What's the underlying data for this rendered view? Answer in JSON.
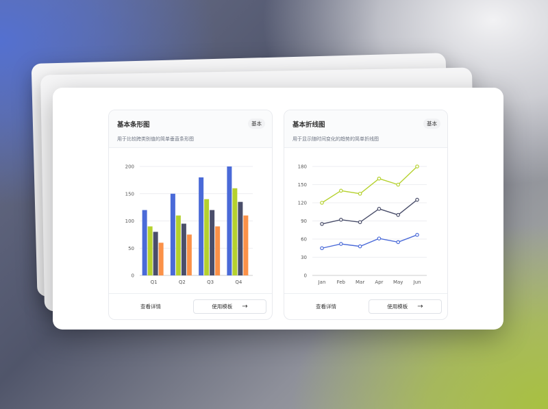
{
  "cards": [
    {
      "title": "基本条形图",
      "badge": "基本",
      "description": "用于比较跨类别值的简单垂直条形图",
      "detail_label": "查看详情",
      "use_label": "使用模板",
      "arrow_icon": "arrow-right-icon"
    },
    {
      "title": "基本折线图",
      "badge": "基本",
      "description": "用于显示随时间变化的趋势的简单折线图",
      "detail_label": "查看详情",
      "use_label": "使用模板",
      "arrow_icon": "arrow-right-icon"
    }
  ],
  "chart_data": [
    {
      "type": "bar",
      "categories": [
        "Q1",
        "Q2",
        "Q3",
        "Q4"
      ],
      "ylim": [
        0,
        200
      ],
      "yticks": [
        0,
        50,
        100,
        150,
        200
      ],
      "grid": true,
      "series": [
        {
          "values": [
            120,
            150,
            180,
            200
          ],
          "color": "#4a6ad8"
        },
        {
          "values": [
            90,
            110,
            140,
            160
          ],
          "color": "#b5d12e"
        },
        {
          "values": [
            80,
            95,
            120,
            135
          ],
          "color": "#4a4e6a"
        },
        {
          "values": [
            60,
            75,
            90,
            110
          ],
          "color": "#fb9148"
        }
      ]
    },
    {
      "type": "line",
      "categories": [
        "Jan",
        "Feb",
        "Mar",
        "Apr",
        "May",
        "Jun"
      ],
      "ylim": [
        0,
        180
      ],
      "yticks": [
        0,
        30,
        60,
        90,
        120,
        150,
        180
      ],
      "grid": true,
      "series": [
        {
          "values": [
            120,
            140,
            135,
            160,
            150,
            180
          ],
          "color": "#b5d12e"
        },
        {
          "values": [
            85,
            92,
            88,
            110,
            100,
            125
          ],
          "color": "#4a4e6a"
        },
        {
          "values": [
            45,
            52,
            48,
            61,
            55,
            67
          ],
          "color": "#4a6ad8"
        }
      ]
    }
  ]
}
